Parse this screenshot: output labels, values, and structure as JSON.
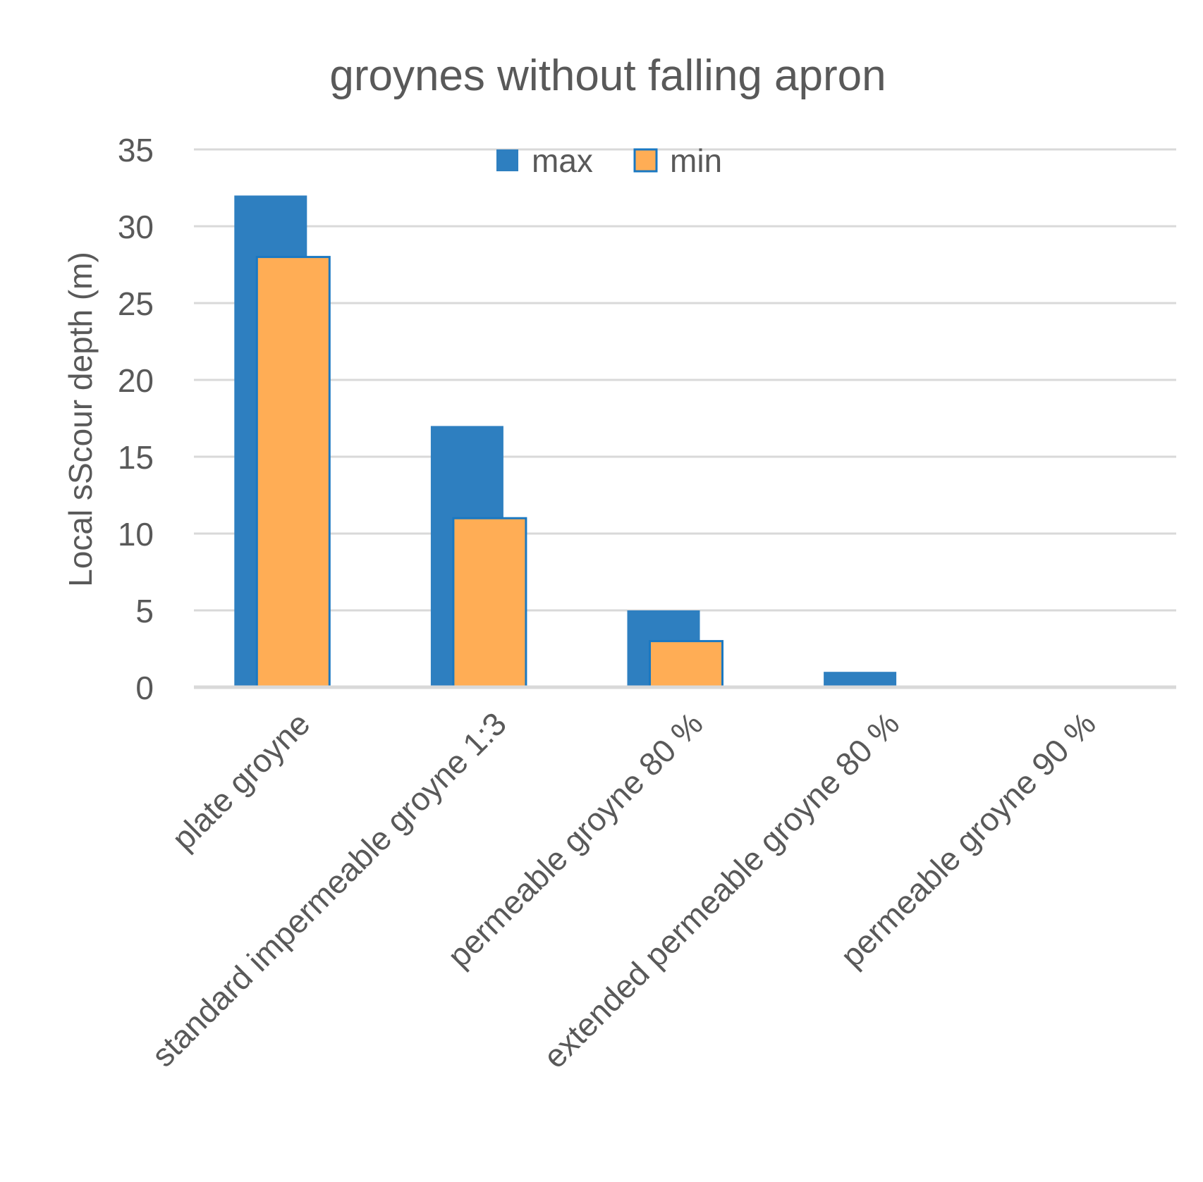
{
  "chart_data": {
    "type": "bar",
    "title": "groynes without falling apron",
    "xlabel": "",
    "ylabel": "Local sScour depth (m)",
    "ylim": [
      0,
      35
    ],
    "yticks": [
      0,
      5,
      10,
      15,
      20,
      25,
      30,
      35
    ],
    "grid": true,
    "legend_position": "top-center",
    "categories": [
      "plate groyne",
      "standard impermeable groyne 1:3",
      "permeable groyne 80 %",
      "extended permeable groyne 80 %",
      "permeable groyne 90 %"
    ],
    "series": [
      {
        "name": "max",
        "values": [
          32,
          17,
          5,
          1,
          0
        ],
        "color": "#2e7fc0"
      },
      {
        "name": "min",
        "values": [
          28,
          11,
          3,
          0,
          0
        ],
        "color": "#ffad55"
      }
    ]
  }
}
